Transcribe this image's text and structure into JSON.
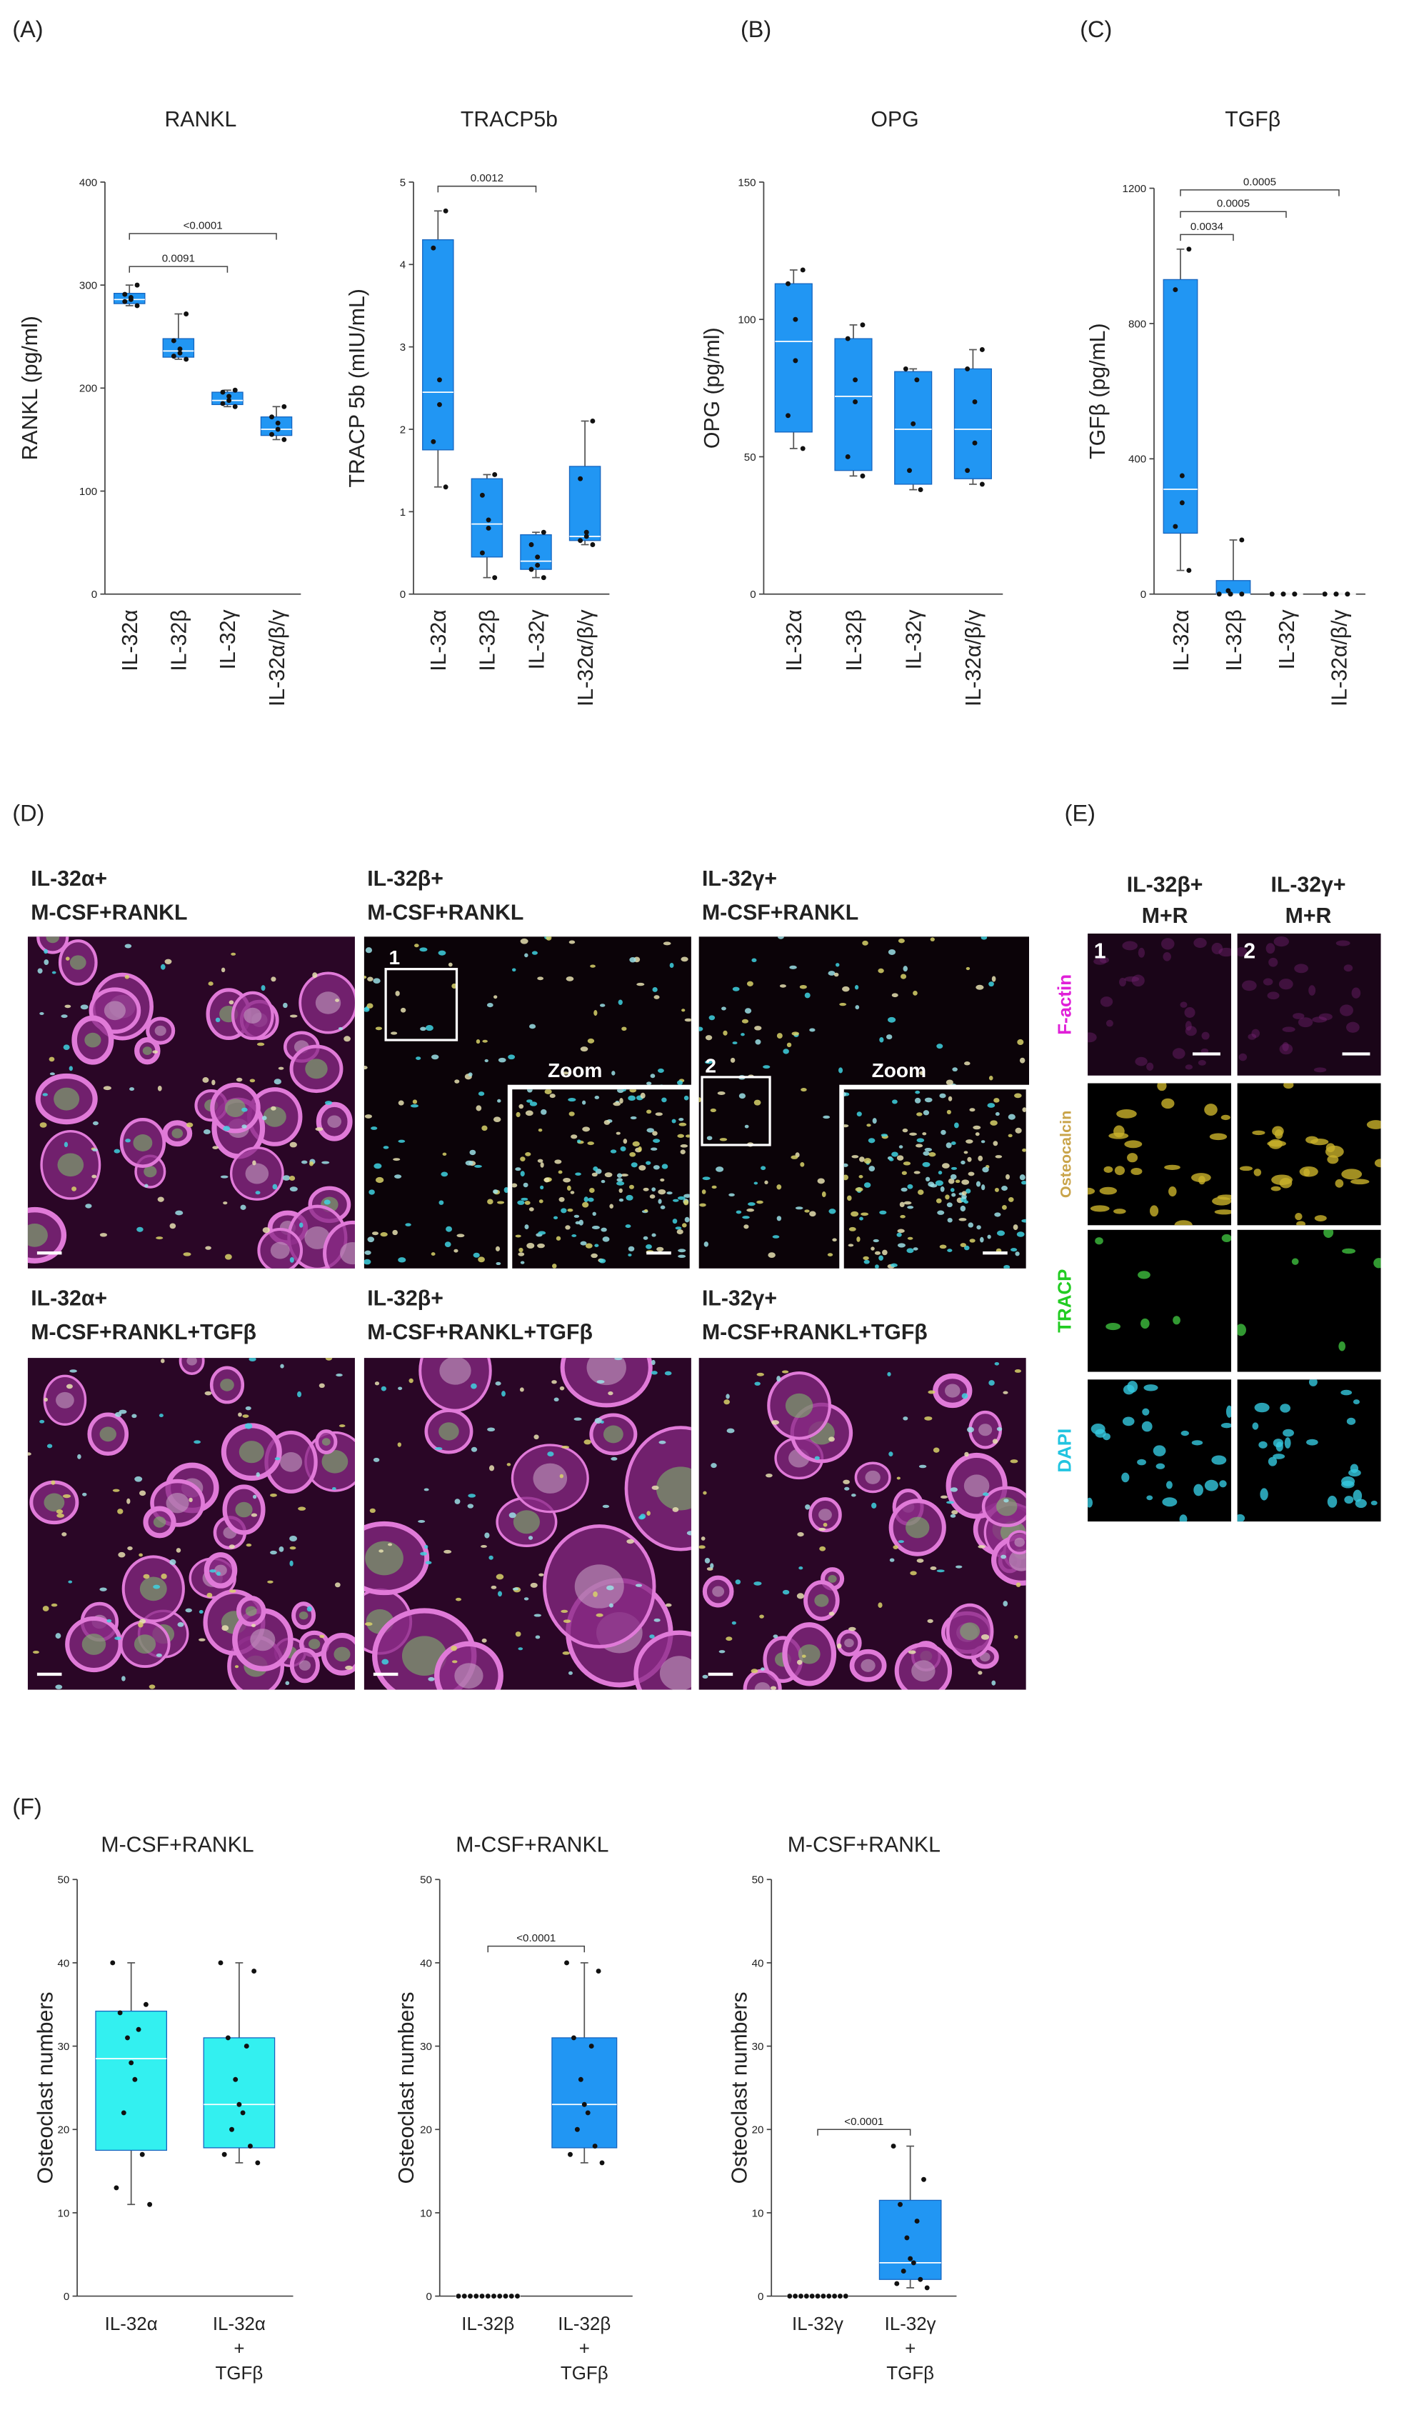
{
  "chart_data": [
    {
      "type": "box",
      "title": "RANKL",
      "ylabel": "RANKL (pg/ml)",
      "categories": [
        "IL-32α",
        "IL-32β",
        "IL-32γ",
        "IL-32α/β/γ"
      ],
      "ylim": [
        0,
        400
      ],
      "yticks": [
        0,
        100,
        200,
        300,
        400
      ],
      "color": "#2196f3",
      "boxes": [
        {
          "min": 280,
          "q1": 282,
          "median": 286,
          "q3": 292,
          "max": 300,
          "points": [
            280,
            284,
            286,
            288,
            291,
            300
          ]
        },
        {
          "min": 228,
          "q1": 230,
          "median": 236,
          "q3": 248,
          "max": 272,
          "points": [
            228,
            231,
            234,
            238,
            246,
            272
          ]
        },
        {
          "min": 182,
          "q1": 184,
          "median": 188,
          "q3": 196,
          "max": 198,
          "points": [
            182,
            185,
            188,
            192,
            196,
            198
          ]
        },
        {
          "min": 150,
          "q1": 154,
          "median": 160,
          "q3": 172,
          "max": 182,
          "points": [
            150,
            155,
            160,
            166,
            172,
            182
          ]
        }
      ],
      "significance": [
        {
          "from": "IL-32α",
          "to": "IL-32γ",
          "y": 318,
          "label": "0.0091"
        },
        {
          "from": "IL-32α",
          "to": "IL-32α/β/γ",
          "y": 350,
          "label": "<0.0001"
        }
      ]
    },
    {
      "type": "box",
      "title": "TRACP5b",
      "ylabel": "TRACP 5b (mIU/mL)",
      "categories": [
        "IL-32α",
        "IL-32β",
        "IL-32γ",
        "IL-32α/β/γ"
      ],
      "ylim": [
        0,
        5
      ],
      "yticks": [
        0,
        1,
        2,
        3,
        4,
        5
      ],
      "color": "#2196f3",
      "boxes": [
        {
          "min": 1.3,
          "q1": 1.75,
          "median": 2.45,
          "q3": 4.3,
          "max": 4.65,
          "points": [
            1.3,
            1.85,
            2.3,
            2.6,
            4.2,
            4.65
          ]
        },
        {
          "min": 0.2,
          "q1": 0.45,
          "median": 0.85,
          "q3": 1.4,
          "max": 1.45,
          "points": [
            0.2,
            0.5,
            0.8,
            0.9,
            1.2,
            1.45
          ]
        },
        {
          "min": 0.2,
          "q1": 0.3,
          "median": 0.4,
          "q3": 0.72,
          "max": 0.75,
          "points": [
            0.2,
            0.3,
            0.35,
            0.45,
            0.6,
            0.75
          ]
        },
        {
          "min": 0.6,
          "q1": 0.65,
          "median": 0.7,
          "q3": 1.55,
          "max": 2.1,
          "points": [
            0.6,
            0.65,
            0.7,
            0.75,
            1.4,
            2.1
          ]
        }
      ],
      "significance": [
        {
          "from": "IL-32α",
          "to": "IL-32γ",
          "y": 4.95,
          "label": "0.0012"
        }
      ]
    },
    {
      "type": "box",
      "title": "OPG",
      "ylabel": "OPG (pg/ml)",
      "categories": [
        "IL-32α",
        "IL-32β",
        "IL-32γ",
        "IL-32α/β/γ"
      ],
      "ylim": [
        0,
        150
      ],
      "yticks": [
        0,
        50,
        100,
        150
      ],
      "color": "#2196f3",
      "boxes": [
        {
          "min": 53,
          "q1": 59,
          "median": 92,
          "q3": 113,
          "max": 118,
          "points": [
            53,
            65,
            85,
            100,
            113,
            118
          ]
        },
        {
          "min": 43,
          "q1": 45,
          "median": 72,
          "q3": 93,
          "max": 98,
          "points": [
            43,
            50,
            70,
            78,
            93,
            98
          ]
        },
        {
          "min": 38,
          "q1": 40,
          "median": 60,
          "q3": 81,
          "max": 82,
          "points": [
            38,
            45,
            62,
            78,
            82
          ]
        },
        {
          "min": 40,
          "q1": 42,
          "median": 60,
          "q3": 82,
          "max": 89,
          "points": [
            40,
            45,
            55,
            70,
            82,
            89
          ]
        }
      ]
    },
    {
      "type": "box",
      "title": "TGFβ",
      "ylabel": "TGFβ (pg/mL)",
      "categories": [
        "IL-32α",
        "IL-32β",
        "IL-32γ",
        "IL-32α/β/γ"
      ],
      "ylim": [
        0,
        1200
      ],
      "yticks": [
        0,
        400,
        800,
        1200
      ],
      "color": "#2196f3",
      "boxes": [
        {
          "min": 70,
          "q1": 180,
          "median": 310,
          "q3": 930,
          "max": 1020,
          "points": [
            70,
            200,
            270,
            350,
            900,
            1020
          ]
        },
        {
          "min": 0,
          "q1": 0,
          "median": 0,
          "q3": 40,
          "max": 160,
          "points": [
            0,
            0,
            0,
            0,
            10,
            160
          ]
        },
        {
          "min": 0,
          "q1": 0,
          "median": 0,
          "q3": 0,
          "max": 0,
          "points": [
            0,
            0,
            0,
            0,
            0,
            0
          ]
        },
        {
          "min": 0,
          "q1": 0,
          "median": 0,
          "q3": 0,
          "max": 0,
          "points": [
            0,
            0,
            0,
            0,
            0,
            0
          ]
        }
      ],
      "significance": [
        {
          "from": "IL-32α",
          "to": "IL-32β",
          "y": 1063,
          "label": "0.0034"
        },
        {
          "from": "IL-32α",
          "to": "IL-32γ",
          "y": 1131,
          "label": "0.0005"
        },
        {
          "from": "IL-32α",
          "to": "IL-32α/β/γ",
          "y": 1195,
          "label": "0.0005"
        }
      ]
    },
    {
      "type": "box",
      "title": "M-CSF+RANKL",
      "ylabel": "Osteoclast numbers",
      "categories": [
        "IL-32α",
        "IL-32α + TGFβ"
      ],
      "ylim": [
        0,
        50
      ],
      "yticks": [
        0,
        10,
        20,
        30,
        40,
        50
      ],
      "color": "#33f0f0",
      "boxes": [
        {
          "min": 11,
          "q1": 17.5,
          "median": 28.5,
          "q3": 34.2,
          "max": 40,
          "points": [
            11,
            13,
            17,
            22,
            26,
            28,
            31,
            32,
            34,
            35,
            40
          ]
        },
        {
          "min": 16,
          "q1": 17.8,
          "median": 23,
          "q3": 31,
          "max": 40,
          "points": [
            16,
            17,
            18,
            20,
            22,
            23,
            26,
            30,
            31,
            39,
            40
          ]
        }
      ]
    },
    {
      "type": "box",
      "title": "M-CSF+RANKL",
      "ylabel": "Osteoclast numbers",
      "categories": [
        "IL-32β",
        "IL-32β + TGFβ"
      ],
      "ylim": [
        0,
        50
      ],
      "yticks": [
        0,
        10,
        20,
        30,
        40,
        50
      ],
      "color": "#2196f3",
      "boxes": [
        {
          "min": 0,
          "q1": 0,
          "median": 0,
          "q3": 0,
          "max": 0,
          "points": [
            0,
            0,
            0,
            0,
            0,
            0,
            0,
            0,
            0,
            0,
            0
          ]
        },
        {
          "min": 16,
          "q1": 17.8,
          "median": 23,
          "q3": 31,
          "max": 40,
          "points": [
            16,
            17,
            18,
            20,
            22,
            23,
            26,
            30,
            31,
            39,
            40
          ]
        }
      ],
      "significance": [
        {
          "from": "IL-32β",
          "to": "IL-32β + TGFβ",
          "y": 42,
          "label": "<0.0001"
        }
      ]
    },
    {
      "type": "box",
      "title": "M-CSF+RANKL",
      "ylabel": "Osteoclast numbers",
      "categories": [
        "IL-32γ",
        "IL-32γ + TGFβ"
      ],
      "ylim": [
        0,
        50
      ],
      "yticks": [
        0,
        10,
        20,
        30,
        40,
        50
      ],
      "color": "#2196f3",
      "boxes": [
        {
          "min": 0,
          "q1": 0,
          "median": 0,
          "q3": 0,
          "max": 0,
          "points": [
            0,
            0,
            0,
            0,
            0,
            0,
            0,
            0,
            0,
            0,
            0
          ]
        },
        {
          "min": 1,
          "q1": 2,
          "median": 4,
          "q3": 11.5,
          "max": 18,
          "points": [
            1,
            1.5,
            2,
            3,
            4,
            4.5,
            7,
            9,
            11,
            14,
            18
          ]
        }
      ],
      "significance": [
        {
          "from": "IL-32γ",
          "to": "IL-32γ + TGFβ",
          "y": 20,
          "label": "<0.0001"
        }
      ]
    }
  ],
  "figure": {
    "panels": [
      "(A)",
      "(B)",
      "(C)",
      "(D)",
      "(E)",
      "(F)"
    ],
    "d_images": [
      [
        "IL-32α+",
        "M-CSF+RANKL"
      ],
      [
        "IL-32β+",
        "M-CSF+RANKL"
      ],
      [
        "IL-32γ+",
        "M-CSF+RANKL"
      ],
      [
        "IL-32α+",
        "M-CSF+RANKL+TGFβ"
      ],
      [
        "IL-32β+",
        "M-CSF+RANKL+TGFβ"
      ],
      [
        "IL-32γ+",
        "M-CSF+RANKL+TGFβ"
      ]
    ],
    "d_insets": [
      "1",
      "2"
    ],
    "zoom": [
      "Zoom",
      "Zoom"
    ],
    "e_columns": [
      [
        "IL-32β+",
        "M+R"
      ],
      [
        "IL-32γ+",
        "M+R"
      ]
    ],
    "e_rows": [
      "F-actin",
      "Osteocalcin",
      "TRACP",
      "DAPI"
    ],
    "e_insets": [
      "1",
      "2"
    ]
  }
}
